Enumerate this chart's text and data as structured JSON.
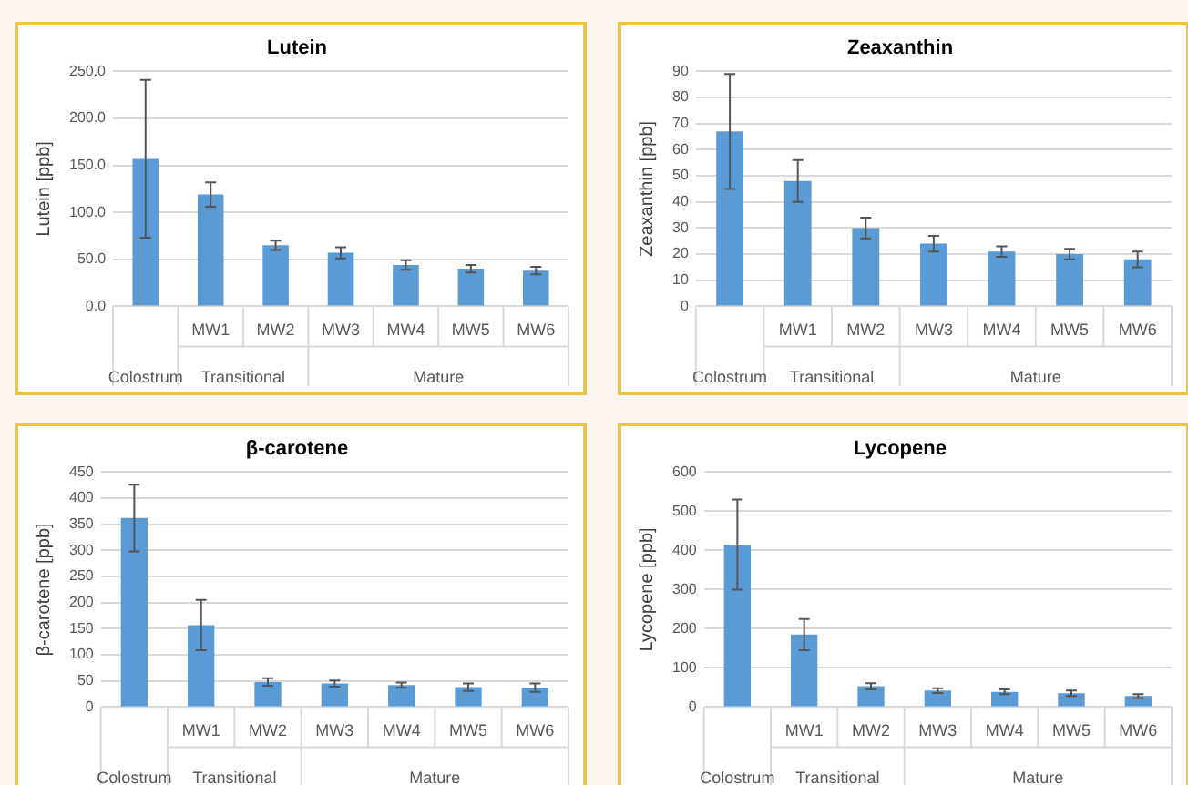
{
  "chart_data": [
    {
      "type": "bar",
      "title": "Lutein",
      "ylabel": "Lutein [ppb]",
      "categories": [
        null,
        "MW1",
        "MW2",
        "MW3",
        "MW4",
        "MW5",
        "MW6"
      ],
      "values": [
        157,
        119,
        65,
        57,
        44,
        40,
        38
      ],
      "errors": [
        84,
        13,
        5,
        6,
        5,
        4,
        4
      ],
      "color": "#5b9bd5",
      "ylim": [
        0,
        250
      ],
      "yticks": [
        {
          "value": 0,
          "label": "0.0"
        },
        {
          "value": 50,
          "label": "50.0"
        },
        {
          "value": 100,
          "label": "100.0"
        },
        {
          "value": 150,
          "label": "150.0"
        },
        {
          "value": 200,
          "label": "200.0"
        },
        {
          "value": 250,
          "label": "250.0"
        }
      ],
      "grid": "y",
      "legend": false,
      "annotations": [
        "Colostrum",
        "Transitional",
        "Mature"
      ]
    },
    {
      "type": "bar",
      "title": "Zeaxanthin",
      "ylabel": "Zeaxanthin [ppb]",
      "categories": [
        null,
        "MW1",
        "MW2",
        "MW3",
        "MW4",
        "MW5",
        "MW6"
      ],
      "values": [
        67,
        48,
        30,
        24,
        21,
        20,
        18
      ],
      "errors": [
        22,
        8,
        4,
        3,
        2,
        2,
        3
      ],
      "color": "#5b9bd5",
      "ylim": [
        0,
        90
      ],
      "yticks": [
        0,
        10,
        20,
        30,
        40,
        50,
        60,
        70,
        80,
        90
      ],
      "grid": "y",
      "legend": false,
      "annotations": [
        "Colostrum",
        "Transitional",
        "Mature"
      ]
    },
    {
      "type": "bar",
      "title": "β-carotene",
      "ylabel": "β-carotene [ppb]",
      "categories": [
        null,
        "MW1",
        "MW2",
        "MW3",
        "MW4",
        "MW5",
        "MW6"
      ],
      "values": [
        362,
        157,
        48,
        45,
        42,
        38,
        37
      ],
      "errors": [
        64,
        48,
        7,
        6,
        5,
        7,
        8
      ],
      "color": "#5b9bd5",
      "ylim": [
        0,
        450
      ],
      "yticks": [
        0,
        50,
        100,
        150,
        200,
        250,
        300,
        350,
        400,
        450
      ],
      "grid": "y",
      "legend": false,
      "annotations": [
        "Colostrum",
        "Transitional",
        "Mature"
      ]
    },
    {
      "type": "bar",
      "title": "Lycopene",
      "ylabel": "Lycopene [ppb]",
      "categories": [
        null,
        "MW1",
        "MW2",
        "MW3",
        "MW4",
        "MW5",
        "MW6"
      ],
      "values": [
        415,
        185,
        53,
        42,
        39,
        35,
        28
      ],
      "errors": [
        115,
        40,
        8,
        6,
        6,
        7,
        5
      ],
      "color": "#5b9bd5",
      "ylim": [
        0,
        600
      ],
      "yticks": [
        0,
        100,
        200,
        300,
        400,
        500,
        600
      ],
      "grid": "y",
      "legend": false,
      "annotations": [
        "Colostrum",
        "Transitional",
        "Mature"
      ]
    }
  ]
}
